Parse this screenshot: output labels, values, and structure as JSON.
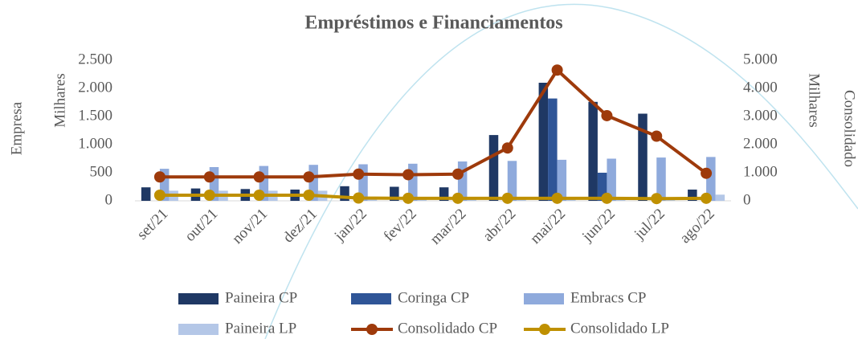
{
  "chart_data": {
    "type": "bar_line",
    "title": "Empréstimos e Financiamentos",
    "ylabel": "Empresa",
    "yunit": "Milhares",
    "y2label": "Consolidado",
    "y2unit": "Milhares",
    "categories": [
      "set/21",
      "out/21",
      "nov/21",
      "dez/21",
      "jan/22",
      "fev/22",
      "mar/22",
      "abr/22",
      "mai/22",
      "jun/22",
      "jul/22",
      "ago/22"
    ],
    "ylim": [
      0,
      2500
    ],
    "yticks": [
      0,
      500,
      {
        "value": 1000,
        "label": "1.000"
      },
      {
        "value": 1500,
        "label": "1.500"
      },
      {
        "value": 2000,
        "label": "2.000"
      },
      {
        "value": 2500,
        "label": "2.500"
      }
    ],
    "y2lim": [
      0,
      5000
    ],
    "y2ticks": [
      0,
      {
        "value": 1000,
        "label": "1.000"
      },
      {
        "value": 2000,
        "label": "2.000"
      },
      {
        "value": 3000,
        "label": "3.000"
      },
      {
        "value": 4000,
        "label": "4.000"
      },
      {
        "value": 5000,
        "label": "5.000"
      }
    ],
    "series": [
      {
        "name": "Paineira CP",
        "kind": "bar",
        "color": "#1f3864",
        "values": [
          240,
          220,
          210,
          200,
          260,
          250,
          240,
          1170,
          2100,
          1760,
          1550,
          200
        ]
      },
      {
        "name": "Coringa CP",
        "kind": "bar",
        "color": "#2f5597",
        "values": [
          0,
          0,
          0,
          0,
          0,
          0,
          0,
          0,
          1820,
          500,
          0,
          0
        ]
      },
      {
        "name": "Embracs CP",
        "kind": "bar",
        "color": "#8faadc",
        "values": [
          570,
          600,
          620,
          640,
          650,
          660,
          700,
          710,
          730,
          750,
          770,
          780
        ]
      },
      {
        "name": "Paineira LP",
        "kind": "bar",
        "color": "#b4c7e7",
        "values": [
          180,
          180,
          180,
          180,
          60,
          50,
          50,
          40,
          40,
          40,
          30,
          110
        ]
      },
      {
        "name": "Consolidado CP",
        "kind": "line",
        "axis": "y2",
        "color": "#9e3a0b",
        "values": [
          850,
          850,
          850,
          850,
          950,
          930,
          950,
          1880,
          4650,
          3030,
          2300,
          980
        ]
      },
      {
        "name": "Consolidado LP",
        "kind": "line",
        "axis": "y2",
        "color": "#bf9000",
        "values": [
          200,
          200,
          200,
          200,
          100,
          90,
          90,
          90,
          90,
          90,
          80,
          90
        ]
      }
    ]
  }
}
